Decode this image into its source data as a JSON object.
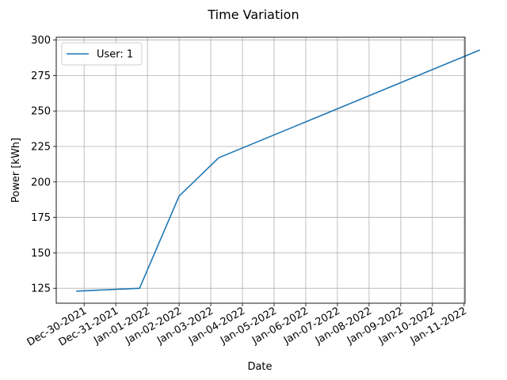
{
  "chart_data": {
    "type": "line",
    "title": "Time Variation",
    "xlabel": "Date",
    "ylabel": "Power [kWh]",
    "x_ticks": [
      "Dec-30-2021",
      "Dec-31-2021",
      "Jan-01-2022",
      "Jan-02-2022",
      "Jan-03-2022",
      "Jan-04-2022",
      "Jan-05-2022",
      "Jan-06-2022",
      "Jan-07-2022",
      "Jan-08-2022",
      "Jan-09-2022",
      "Jan-10-2022",
      "Jan-11-2022"
    ],
    "y_ticks": [
      125,
      150,
      175,
      200,
      225,
      250,
      275,
      300
    ],
    "ylim": [
      114.5,
      302
    ],
    "grid": true,
    "legend": "top-left",
    "series": [
      {
        "name": "User: 1",
        "color": "#1f77b4",
        "points": [
          {
            "x": "Dec-29-2021 18:00",
            "y": 123
          },
          {
            "x": "Dec-31-2021 18:00",
            "y": 125
          },
          {
            "x": "Jan-02-2022 00:00",
            "y": 190
          },
          {
            "x": "Jan-03-2022 06:00",
            "y": 217
          },
          {
            "x": "Jan-11-2022 12:00",
            "y": 293
          }
        ]
      }
    ]
  }
}
